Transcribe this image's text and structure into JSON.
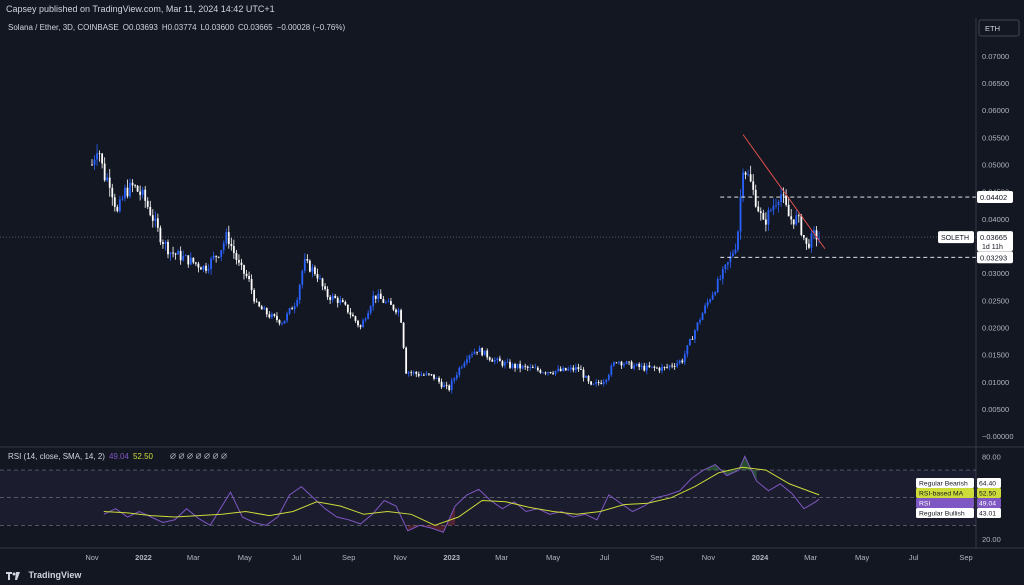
{
  "header": {
    "published": "Capsey published on TradingView.com, Mar 11, 2024 14:42 UTC+1"
  },
  "footer": {
    "brand": "TradingView"
  },
  "colors": {
    "up": "#2962ff",
    "down": "#ffffff",
    "bg": "#131722",
    "rsi": "#7e57c2",
    "rsi_ma": "#cddc39",
    "trend": "#ef5350"
  },
  "chart_data": [
    {
      "type": "candlestick",
      "title": "Solana / Ether, 3D, COINBASE",
      "ohlc_labels": {
        "o": "O0.03693",
        "h": "H0.03774",
        "l": "L0.03600",
        "c": "C0.03665",
        "chg": "−0.00028 (−0.76%)"
      },
      "currency": "ETH",
      "symbol": "SOLETH",
      "last_price": "0.03665",
      "countdown": "1d 11h",
      "level_labels": [
        "0.04402",
        "0.03293"
      ],
      "levels": [
        0.04402,
        0.03293
      ],
      "ylim": [
        -0.0018,
        0.0755
      ],
      "y_ticks": [
        "0.07000",
        "0.06500",
        "0.06000",
        "0.05500",
        "0.05000",
        "0.04500",
        "0.04000",
        "0.03500",
        "0.03000",
        "0.02500",
        "0.02000",
        "0.01500",
        "0.01000",
        "0.00500",
        "−0.00000"
      ],
      "y_tick_values": [
        0.07,
        0.065,
        0.06,
        0.055,
        0.05,
        0.045,
        0.04,
        0.035,
        0.03,
        0.025,
        0.02,
        0.015,
        0.01,
        0.005,
        0
      ],
      "x_ticks": [
        "Nov",
        "2022",
        "Mar",
        "May",
        "Jul",
        "Sep",
        "Nov",
        "2023",
        "Mar",
        "May",
        "Jul",
        "Sep",
        "Nov",
        "2024",
        "Mar",
        "May",
        "Jul",
        "Sep"
      ],
      "x_tick_dates": [
        "2021-11-01",
        "2022-01-01",
        "2022-03-01",
        "2022-05-01",
        "2022-07-01",
        "2022-09-01",
        "2022-11-01",
        "2023-01-01",
        "2023-03-01",
        "2023-05-01",
        "2023-07-01",
        "2023-09-01",
        "2023-11-01",
        "2024-01-01",
        "2024-03-01",
        "2024-05-01",
        "2024-07-01",
        "2024-09-01"
      ],
      "price_path": [
        [
          "2021-11-01",
          0.05
        ],
        [
          "2021-11-08",
          0.054
        ],
        [
          "2021-11-15",
          0.048
        ],
        [
          "2021-11-22",
          0.047
        ],
        [
          "2021-12-01",
          0.041
        ],
        [
          "2021-12-10",
          0.045
        ],
        [
          "2021-12-20",
          0.046
        ],
        [
          "2022-01-01",
          0.044
        ],
        [
          "2022-01-10",
          0.041
        ],
        [
          "2022-01-20",
          0.037
        ],
        [
          "2022-02-01",
          0.034
        ],
        [
          "2022-02-15",
          0.033
        ],
        [
          "2022-03-01",
          0.032
        ],
        [
          "2022-03-15",
          0.031
        ],
        [
          "2022-04-01",
          0.034
        ],
        [
          "2022-04-10",
          0.037
        ],
        [
          "2022-04-25",
          0.031
        ],
        [
          "2022-05-05",
          0.029
        ],
        [
          "2022-05-15",
          0.024
        ],
        [
          "2022-06-01",
          0.022
        ],
        [
          "2022-06-15",
          0.021
        ],
        [
          "2022-07-01",
          0.025
        ],
        [
          "2022-07-10",
          0.032
        ],
        [
          "2022-07-25",
          0.03
        ],
        [
          "2022-08-05",
          0.026
        ],
        [
          "2022-08-20",
          0.025
        ],
        [
          "2022-09-01",
          0.023
        ],
        [
          "2022-09-15",
          0.02
        ],
        [
          "2022-10-01",
          0.026
        ],
        [
          "2022-10-20",
          0.024
        ],
        [
          "2022-11-01",
          0.023
        ],
        [
          "2022-11-08",
          0.012
        ],
        [
          "2022-11-20",
          0.0115
        ],
        [
          "2022-12-10",
          0.011
        ],
        [
          "2022-12-28",
          0.0085
        ],
        [
          "2023-01-08",
          0.012
        ],
        [
          "2023-01-20",
          0.015
        ],
        [
          "2023-02-01",
          0.016
        ],
        [
          "2023-02-20",
          0.014
        ],
        [
          "2023-03-10",
          0.013
        ],
        [
          "2023-04-01",
          0.0125
        ],
        [
          "2023-04-20",
          0.012
        ],
        [
          "2023-05-10",
          0.012
        ],
        [
          "2023-06-01",
          0.0125
        ],
        [
          "2023-06-15",
          0.009
        ],
        [
          "2023-07-01",
          0.0105
        ],
        [
          "2023-07-15",
          0.014
        ],
        [
          "2023-08-01",
          0.013
        ],
        [
          "2023-08-20",
          0.0125
        ],
        [
          "2023-09-10",
          0.0125
        ],
        [
          "2023-10-01",
          0.014
        ],
        [
          "2023-10-20",
          0.021
        ],
        [
          "2023-11-01",
          0.025
        ],
        [
          "2023-11-15",
          0.029
        ],
        [
          "2023-11-25",
          0.032
        ],
        [
          "2023-12-05",
          0.036
        ],
        [
          "2023-12-12",
          0.05
        ],
        [
          "2023-12-20",
          0.047
        ],
        [
          "2023-12-28",
          0.043
        ],
        [
          "2024-01-05",
          0.039
        ],
        [
          "2024-01-15",
          0.042
        ],
        [
          "2024-01-25",
          0.045
        ],
        [
          "2024-02-05",
          0.04
        ],
        [
          "2024-02-15",
          0.04
        ],
        [
          "2024-02-25",
          0.035
        ],
        [
          "2024-03-05",
          0.037
        ],
        [
          "2024-03-11",
          0.0366
        ]
      ],
      "trend_line": [
        [
          "2023-12-12",
          0.0555
        ],
        [
          "2024-03-18",
          0.0345
        ]
      ]
    },
    {
      "type": "line",
      "title": "RSI (14, close, SMA, 14, 2)",
      "rsi_value": "49.04",
      "ma_value": "52.50",
      "ylim": [
        15,
        86
      ],
      "y_ticks": [
        "80.00",
        "20.00"
      ],
      "y_tick_values": [
        80,
        20
      ],
      "band_levels": [
        70,
        50,
        30
      ],
      "labels": [
        {
          "text": "Regular Bearish",
          "value": "64.40"
        },
        {
          "text": "RSI-based MA",
          "value": "52.50"
        },
        {
          "text": "RSI",
          "value": "49.04"
        },
        {
          "text": "Regular Bullish",
          "value": "43.01"
        }
      ],
      "series": [
        {
          "name": "RSI",
          "values": [
            [
              "2021-11-15",
              38
            ],
            [
              "2021-11-29",
              42
            ],
            [
              "2021-12-13",
              36
            ],
            [
              "2021-12-27",
              40
            ],
            [
              "2022-01-10",
              36
            ],
            [
              "2022-01-24",
              32
            ],
            [
              "2022-02-07",
              34
            ],
            [
              "2022-02-21",
              42
            ],
            [
              "2022-03-07",
              35
            ],
            [
              "2022-03-21",
              30
            ],
            [
              "2022-04-04",
              44
            ],
            [
              "2022-04-14",
              54
            ],
            [
              "2022-04-28",
              36
            ],
            [
              "2022-05-12",
              32
            ],
            [
              "2022-05-26",
              30
            ],
            [
              "2022-06-09",
              36
            ],
            [
              "2022-06-23",
              52
            ],
            [
              "2022-07-07",
              58
            ],
            [
              "2022-07-21",
              50
            ],
            [
              "2022-08-04",
              42
            ],
            [
              "2022-08-18",
              36
            ],
            [
              "2022-09-01",
              34
            ],
            [
              "2022-09-15",
              31
            ],
            [
              "2022-09-29",
              38
            ],
            [
              "2022-10-13",
              48
            ],
            [
              "2022-10-27",
              44
            ],
            [
              "2022-11-10",
              26
            ],
            [
              "2022-11-24",
              30
            ],
            [
              "2022-12-08",
              28
            ],
            [
              "2022-12-22",
              25
            ],
            [
              "2023-01-05",
              44
            ],
            [
              "2023-01-19",
              52
            ],
            [
              "2023-02-02",
              56
            ],
            [
              "2023-02-16",
              48
            ],
            [
              "2023-03-02",
              42
            ],
            [
              "2023-03-16",
              47
            ],
            [
              "2023-03-30",
              40
            ],
            [
              "2023-04-13",
              42
            ],
            [
              "2023-04-27",
              38
            ],
            [
              "2023-05-11",
              40
            ],
            [
              "2023-05-25",
              36
            ],
            [
              "2023-06-08",
              38
            ],
            [
              "2023-06-22",
              34
            ],
            [
              "2023-07-06",
              52
            ],
            [
              "2023-07-20",
              46
            ],
            [
              "2023-08-03",
              40
            ],
            [
              "2023-08-17",
              44
            ],
            [
              "2023-08-31",
              50
            ],
            [
              "2023-09-14",
              52
            ],
            [
              "2023-09-28",
              55
            ],
            [
              "2023-10-12",
              64
            ],
            [
              "2023-10-26",
              70
            ],
            [
              "2023-11-09",
              74
            ],
            [
              "2023-11-23",
              66
            ],
            [
              "2023-12-07",
              70
            ],
            [
              "2023-12-14",
              80
            ],
            [
              "2023-12-28",
              62
            ],
            [
              "2024-01-11",
              55
            ],
            [
              "2024-01-25",
              60
            ],
            [
              "2024-02-08",
              53
            ],
            [
              "2024-02-22",
              42
            ],
            [
              "2024-03-07",
              47
            ],
            [
              "2024-03-11",
              49
            ]
          ]
        },
        {
          "name": "RSI-based MA",
          "values": [
            [
              "2021-11-15",
              40
            ],
            [
              "2021-12-13",
              39
            ],
            [
              "2022-01-10",
              37
            ],
            [
              "2022-02-07",
              36
            ],
            [
              "2022-03-07",
              37
            ],
            [
              "2022-04-04",
              38
            ],
            [
              "2022-05-02",
              40
            ],
            [
              "2022-05-30",
              37
            ],
            [
              "2022-06-27",
              40
            ],
            [
              "2022-07-25",
              47
            ],
            [
              "2022-08-22",
              44
            ],
            [
              "2022-09-19",
              38
            ],
            [
              "2022-10-17",
              40
            ],
            [
              "2022-11-14",
              38
            ],
            [
              "2022-12-12",
              30
            ],
            [
              "2023-01-09",
              36
            ],
            [
              "2023-02-06",
              48
            ],
            [
              "2023-03-06",
              47
            ],
            [
              "2023-04-03",
              43
            ],
            [
              "2023-05-01",
              40
            ],
            [
              "2023-05-29",
              38
            ],
            [
              "2023-06-26",
              40
            ],
            [
              "2023-07-24",
              45
            ],
            [
              "2023-08-21",
              46
            ],
            [
              "2023-09-18",
              50
            ],
            [
              "2023-10-16",
              58
            ],
            [
              "2023-11-13",
              68
            ],
            [
              "2023-12-11",
              72
            ],
            [
              "2024-01-08",
              70
            ],
            [
              "2024-02-05",
              60
            ],
            [
              "2024-03-11",
              52
            ]
          ]
        }
      ]
    }
  ]
}
